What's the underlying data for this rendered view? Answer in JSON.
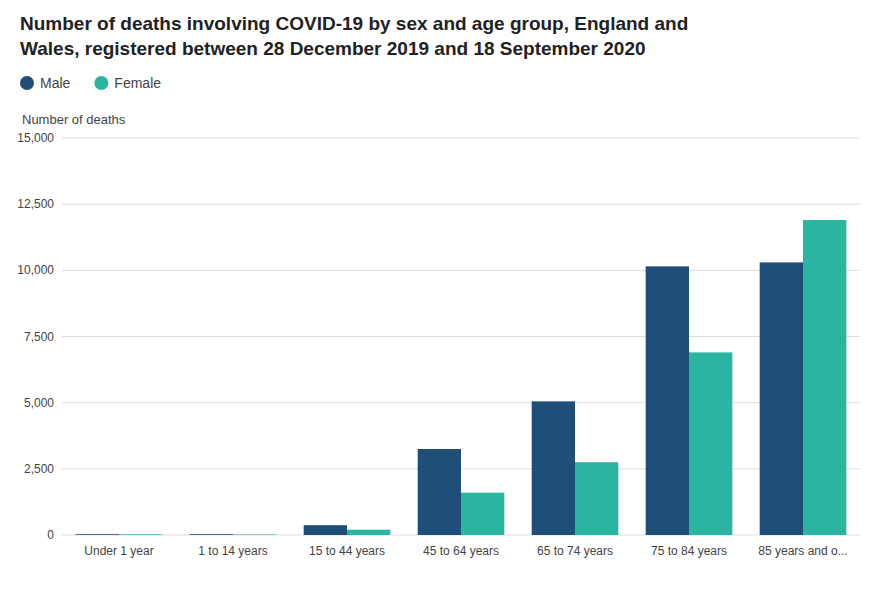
{
  "chart_data": {
    "type": "bar",
    "title": [
      "Number of deaths involving COVID-19 by sex and age group, England and",
      "Wales, registered between 28 December 2019 and 18 September 2020"
    ],
    "ylabel": "Number of deaths",
    "categories": [
      "Under 1 year",
      "1 to 14 years",
      "15 to 44 years",
      "45 to 64 years",
      "65 to 74 years",
      "75 to 84 years",
      "85 years and o..."
    ],
    "series": [
      {
        "name": "Male",
        "color": "#1f4e79",
        "values": [
          30,
          30,
          370,
          3250,
          5050,
          10150,
          10300
        ]
      },
      {
        "name": "Female",
        "color": "#2ab5a0",
        "values": [
          25,
          20,
          200,
          1600,
          2750,
          6900,
          11900
        ]
      }
    ],
    "ylim": [
      0,
      15000
    ],
    "yticks": [
      0,
      {
        "value": 2500,
        "label": "2,500"
      },
      {
        "value": 5000,
        "label": "5,000"
      },
      {
        "value": 7500,
        "label": "7,500"
      },
      {
        "value": 10000,
        "label": "10,000"
      },
      {
        "value": 12500,
        "label": "12,500"
      },
      {
        "value": 15000,
        "label": "15,000"
      }
    ],
    "grid": true,
    "legend": "top-left"
  }
}
